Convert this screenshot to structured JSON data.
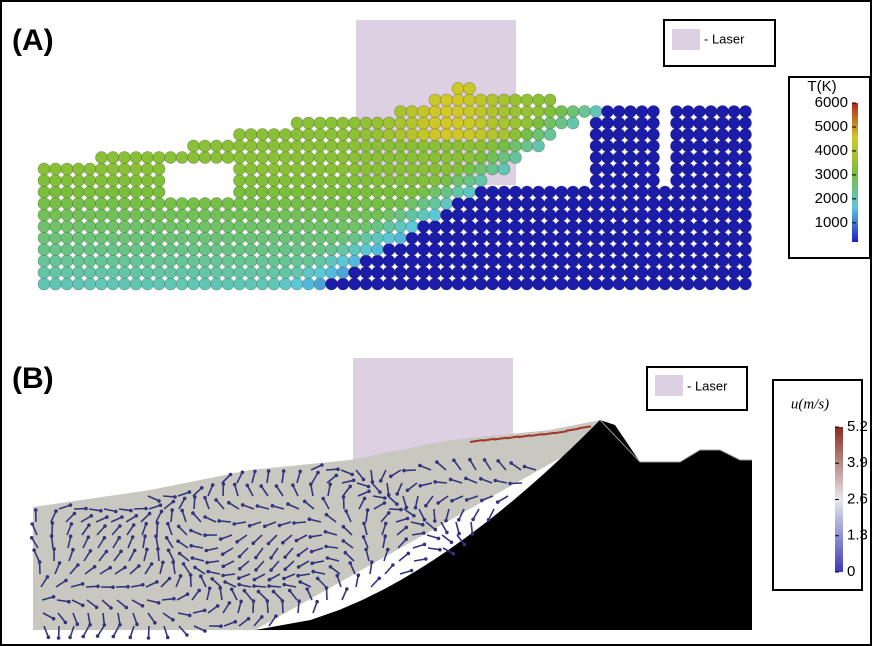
{
  "panel_a": {
    "label": "(A)",
    "legend": "- Laser",
    "colorbar": {
      "title": "T(K)",
      "lim": [
        200,
        6000
      ],
      "ticks": [
        1000,
        2000,
        3000,
        4000,
        5000,
        6000
      ]
    }
  },
  "panel_b": {
    "label": "(B)",
    "legend": "- Laser",
    "colorbar": {
      "title": "u(m/s)",
      "lim": [
        0,
        5.2
      ],
      "ticks": [
        0,
        1.3,
        2.6,
        3.9,
        5.2
      ]
    }
  }
}
